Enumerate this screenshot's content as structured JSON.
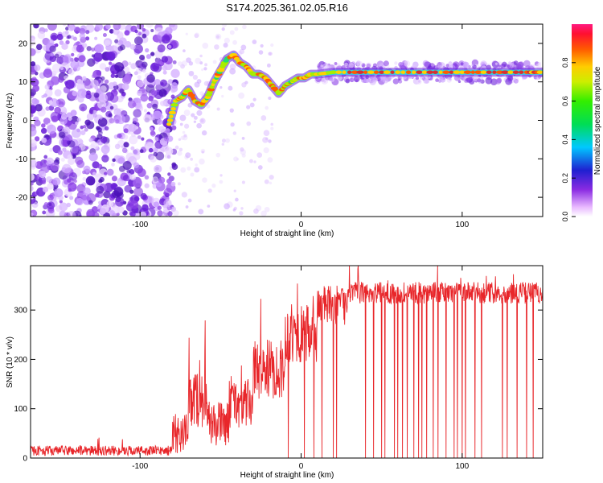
{
  "title": "S174.2025.361.02.05.R16",
  "colors": {
    "snr_line": "#e8262a",
    "dots": "#7a2ce0",
    "signal_core": "#c0392b",
    "band": "#2dd2e0"
  },
  "chart_data": [
    {
      "type": "heatmap",
      "name": "spectrogram",
      "xlabel": "Height of straight line (km)",
      "ylabel": "Frequency (Hz)",
      "xlim": [
        -168,
        150
      ],
      "ylim": [
        -25,
        25
      ],
      "xticks": [
        -100,
        0,
        100
      ],
      "xtick_labels": [
        "-100",
        "0",
        "100"
      ],
      "yticks": [
        20,
        10,
        0,
        -10,
        -20
      ],
      "ytick_labels": [
        "20",
        "10",
        "0",
        "-10",
        "-20"
      ],
      "colorbar": {
        "label": "Normalized spectral amplitude",
        "range": [
          0,
          1
        ],
        "ticks": [
          0.0,
          0.2,
          0.4,
          0.6,
          0.8
        ],
        "tick_labels": [
          "0.0",
          "0.2",
          "0.4",
          "0.6",
          "0.8"
        ]
      },
      "signal_track": {
        "x": [
          -82,
          -78,
          -74,
          -70,
          -66,
          -62,
          -58,
          -54,
          -50,
          -46,
          -42,
          -38,
          -34,
          -30,
          -26,
          -22,
          -18,
          -14,
          -10,
          -6,
          -2,
          2,
          6,
          10,
          20,
          40,
          60,
          80,
          100,
          120,
          140,
          150
        ],
        "y": [
          -1,
          5,
          6,
          8,
          5,
          4,
          6,
          10,
          13,
          16,
          17,
          15,
          14,
          12,
          12,
          11,
          9,
          7,
          9,
          10,
          11,
          11,
          12,
          12,
          12.5,
          12.5,
          12.5,
          12.5,
          12.5,
          12.5,
          12.5,
          12.5
        ]
      }
    },
    {
      "type": "line",
      "name": "snr",
      "xlabel": "Height of straight line (km)",
      "ylabel": "SNR (10 * v/v)",
      "xlim": [
        -168,
        150
      ],
      "ylim": [
        0,
        390
      ],
      "xticks": [
        -100,
        0,
        100
      ],
      "xtick_labels": [
        "-100",
        "0",
        "100"
      ],
      "yticks": [
        0,
        100,
        200,
        300
      ],
      "ytick_labels": [
        "0",
        "100",
        "200",
        "300"
      ],
      "segments": [
        {
          "x0": -168,
          "x1": -80,
          "mean": 15,
          "noise": 10
        },
        {
          "x0": -80,
          "x1": -70,
          "mean": 50,
          "noise": 40
        },
        {
          "x0": -70,
          "x1": -58,
          "mean": 120,
          "noise": 60
        },
        {
          "x0": -58,
          "x1": -45,
          "mean": 70,
          "noise": 45
        },
        {
          "x0": -45,
          "x1": -30,
          "mean": 110,
          "noise": 50
        },
        {
          "x0": -30,
          "x1": -10,
          "mean": 180,
          "noise": 60
        },
        {
          "x0": -10,
          "x1": 10,
          "mean": 250,
          "noise": 60
        },
        {
          "x0": 10,
          "x1": 30,
          "mean": 310,
          "noise": 40
        },
        {
          "x0": 30,
          "x1": 150,
          "mean": 335,
          "noise": 22
        }
      ],
      "dropouts_x": [
        -8,
        2,
        8,
        13,
        20,
        22,
        40,
        45,
        50,
        52,
        58,
        60,
        63,
        66,
        70,
        73,
        75,
        78,
        82,
        85,
        90,
        95,
        97,
        100,
        102,
        108,
        112,
        125,
        128,
        134,
        140,
        144
      ]
    }
  ]
}
